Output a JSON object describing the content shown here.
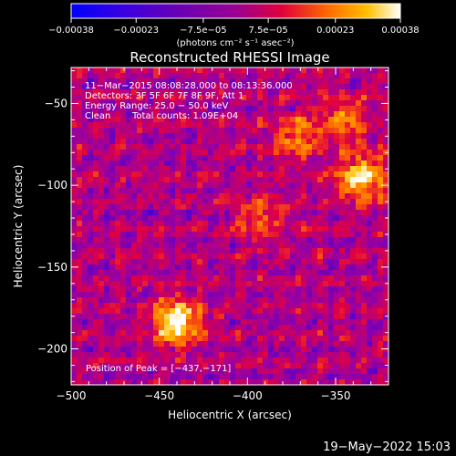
{
  "chart_data": {
    "type": "heatmap",
    "title": "Reconstructed RHESSI Image",
    "xlabel": "Heliocentric X (arcsec)",
    "ylabel": "Heliocentric Y (arcsec)",
    "xlim": [
      -500,
      -320
    ],
    "ylim": [
      -222,
      -28
    ],
    "x_ticks": [
      -500,
      -450,
      -400,
      -350
    ],
    "x_tick_labels": [
      "−500",
      "−450",
      "−400",
      "−350"
    ],
    "y_ticks": [
      -50,
      -100,
      -150,
      -200
    ],
    "y_tick_labels": [
      "−50",
      "−100",
      "−150",
      "−200"
    ],
    "colorbar": {
      "range": [
        -0.00038,
        0.00038
      ],
      "ticks": [
        -0.00038,
        -0.00023,
        -7.5e-05,
        7.5e-05,
        0.00023,
        0.00038
      ],
      "tick_labels": [
        "−0.00038",
        "−0.00023",
        "−7.5e−05",
        "7.5e−05",
        "0.00023",
        "0.00038"
      ],
      "units_text": "(photons cm⁻² s⁻¹ asec⁻²)",
      "colors": [
        "#0000ff",
        "#5a00c8",
        "#a0009a",
        "#e10040",
        "#ff6a00",
        "#ffc000",
        "#ffffff"
      ]
    },
    "annotations": {
      "time": "11−Mar−2015 08:08:28.000 to 08:13:36.000",
      "detectors": "Detectors: 3F 5F 6F 7F 8F 9F, Att 1",
      "energy": "Energy Range: 25.0 − 50.0 keV",
      "method": "Clean",
      "counts": "Total counts: 1.09E+04",
      "peak": "Position of Peak = [−437,−171]"
    },
    "sources": [
      {
        "x": -440,
        "y": -183,
        "amplitude": 1.0
      },
      {
        "x": -372,
        "y": -70,
        "amplitude": 0.55
      },
      {
        "x": -335,
        "y": -95,
        "amplitude": 0.9
      },
      {
        "x": -345,
        "y": -60,
        "amplitude": 0.5
      },
      {
        "x": -393,
        "y": -120,
        "amplitude": 0.45
      }
    ],
    "peak": [
      -437,
      -171
    ]
  },
  "footer": {
    "timestamp": "19−May−2022 15:03"
  }
}
